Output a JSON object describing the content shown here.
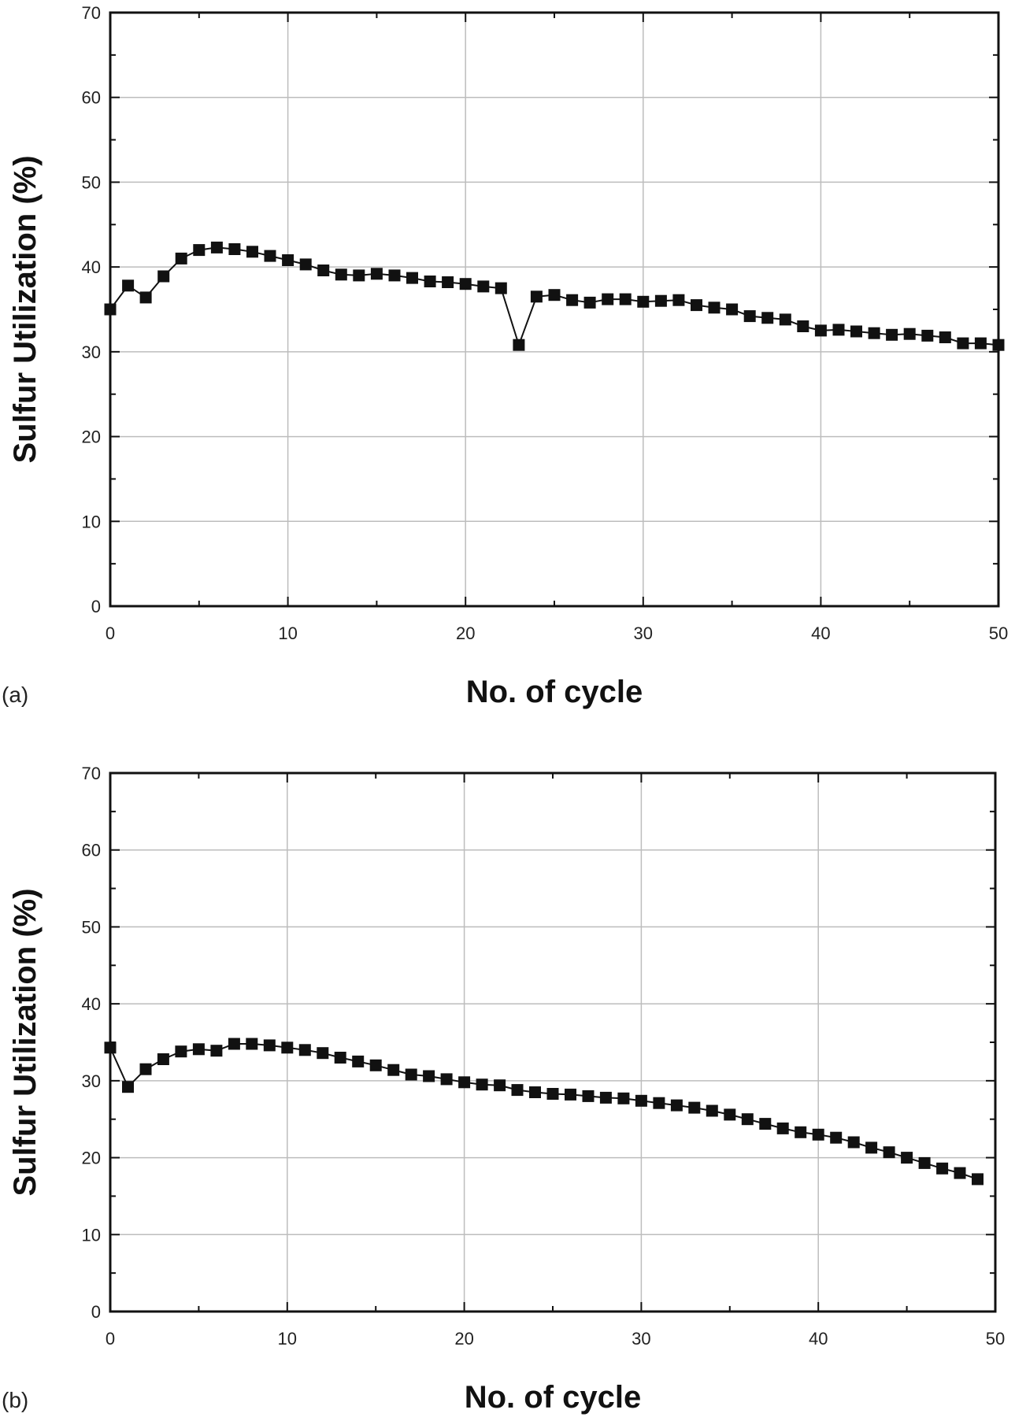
{
  "chart_data": [
    {
      "panel_label": "(a)",
      "type": "line",
      "xlabel": "No. of cycle",
      "ylabel": "Sulfur Utilization (%)",
      "xlim": [
        0,
        50
      ],
      "ylim": [
        0,
        70
      ],
      "xticks": [
        0,
        10,
        20,
        30,
        40,
        50
      ],
      "yticks": [
        0,
        10,
        20,
        30,
        40,
        50,
        60,
        70
      ],
      "grid": true,
      "marker": "square",
      "x": [
        0,
        1,
        2,
        3,
        4,
        5,
        6,
        7,
        8,
        9,
        10,
        11,
        12,
        13,
        14,
        15,
        16,
        17,
        18,
        19,
        20,
        21,
        22,
        23,
        24,
        25,
        26,
        27,
        28,
        29,
        30,
        31,
        32,
        33,
        34,
        35,
        36,
        37,
        38,
        39,
        40,
        41,
        42,
        43,
        44,
        45,
        46,
        47,
        48,
        49,
        50
      ],
      "y": [
        35.0,
        37.8,
        36.4,
        38.9,
        41.0,
        42.0,
        42.3,
        42.1,
        41.8,
        41.3,
        40.8,
        40.3,
        39.6,
        39.1,
        39.0,
        39.2,
        39.0,
        38.7,
        38.3,
        38.2,
        38.0,
        37.7,
        37.5,
        30.8,
        36.5,
        36.7,
        36.1,
        35.8,
        36.2,
        36.2,
        35.9,
        36.0,
        36.1,
        35.5,
        35.2,
        35.0,
        34.2,
        34.0,
        33.8,
        33.0,
        32.5,
        32.6,
        32.4,
        32.2,
        32.0,
        32.1,
        31.9,
        31.7,
        31.0,
        31.0,
        30.8
      ]
    },
    {
      "panel_label": "(b)",
      "type": "line",
      "xlabel": "No. of cycle",
      "ylabel": "Sulfur Utilization (%)",
      "xlim": [
        0,
        50
      ],
      "ylim": [
        0,
        70
      ],
      "xticks": [
        0,
        10,
        20,
        30,
        40,
        50
      ],
      "yticks": [
        0,
        10,
        20,
        30,
        40,
        50,
        60,
        70
      ],
      "grid": true,
      "marker": "square",
      "x": [
        0,
        1,
        2,
        3,
        4,
        5,
        6,
        7,
        8,
        9,
        10,
        11,
        12,
        13,
        14,
        15,
        16,
        17,
        18,
        19,
        20,
        21,
        22,
        23,
        24,
        25,
        26,
        27,
        28,
        29,
        30,
        31,
        32,
        33,
        34,
        35,
        36,
        37,
        38,
        39,
        40,
        41,
        42,
        43,
        44,
        45,
        46,
        47,
        48,
        49
      ],
      "y": [
        34.3,
        29.2,
        31.5,
        32.8,
        33.8,
        34.1,
        33.9,
        34.8,
        34.8,
        34.6,
        34.3,
        34.0,
        33.6,
        33.0,
        32.5,
        32.0,
        31.4,
        30.8,
        30.6,
        30.2,
        29.8,
        29.5,
        29.4,
        28.8,
        28.5,
        28.3,
        28.2,
        28.0,
        27.8,
        27.7,
        27.4,
        27.1,
        26.8,
        26.5,
        26.1,
        25.6,
        25.0,
        24.4,
        23.8,
        23.3,
        23.0,
        22.6,
        22.0,
        21.3,
        20.7,
        20.0,
        19.3,
        18.6,
        18.0,
        17.2
      ]
    }
  ]
}
